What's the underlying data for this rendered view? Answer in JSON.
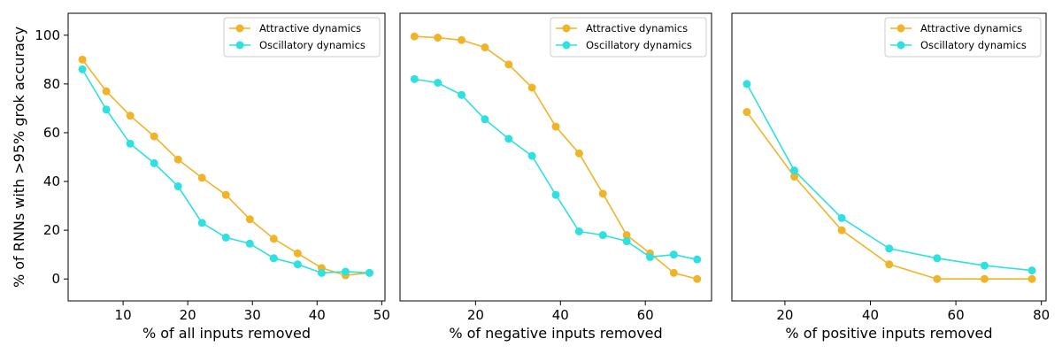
{
  "colors": {
    "attractive": "#f0b429",
    "oscillatory": "#2ee0e0"
  },
  "chart_data": [
    {
      "type": "line",
      "xlabel": "% of all inputs removed",
      "ylabel": "% of RNNs with >95% grok accuracy",
      "xlim": [
        1.5,
        50.5
      ],
      "ylim": [
        -9,
        109
      ],
      "xticks": [
        10,
        20,
        30,
        40,
        50
      ],
      "yticks": [
        0,
        20,
        40,
        60,
        80,
        100
      ],
      "legend": "top-right",
      "series": [
        {
          "name": "Attractive dynamics",
          "color": "#f0b429",
          "x": [
            3.7,
            7.4,
            11.1,
            14.8,
            18.5,
            22.2,
            25.9,
            29.6,
            33.3,
            37.0,
            40.7,
            44.4,
            48.1
          ],
          "y": [
            90,
            77,
            67,
            58.5,
            49,
            41.5,
            34.5,
            24.5,
            16.5,
            10.5,
            4.5,
            1.5,
            2.5
          ]
        },
        {
          "name": "Oscillatory dynamics",
          "color": "#2ee0e0",
          "x": [
            3.7,
            7.4,
            11.1,
            14.8,
            18.5,
            22.2,
            25.9,
            29.6,
            33.3,
            37.0,
            40.7,
            44.4,
            48.1
          ],
          "y": [
            86,
            69.5,
            55.5,
            47.5,
            38,
            23,
            17,
            14.5,
            8.5,
            6,
            2.5,
            3,
            2.5
          ]
        }
      ]
    },
    {
      "type": "line",
      "xlabel": "% of negative inputs removed",
      "ylabel": "",
      "xlim": [
        2.2,
        75.6
      ],
      "ylim": [
        -9,
        109
      ],
      "xticks": [
        20,
        40,
        60
      ],
      "yticks": [],
      "legend": "top-right",
      "series": [
        {
          "name": "Attractive dynamics",
          "color": "#f0b429",
          "x": [
            5.6,
            11.1,
            16.7,
            22.2,
            27.8,
            33.3,
            38.9,
            44.4,
            50.0,
            55.6,
            61.1,
            66.7,
            72.2
          ],
          "y": [
            99.5,
            99,
            98,
            95,
            88,
            78.5,
            62.5,
            51.5,
            35,
            18,
            10.5,
            2.5,
            0
          ]
        },
        {
          "name": "Oscillatory dynamics",
          "color": "#2ee0e0",
          "x": [
            5.6,
            11.1,
            16.7,
            22.2,
            27.8,
            33.3,
            38.9,
            44.4,
            50.0,
            55.6,
            61.1,
            66.7,
            72.2
          ],
          "y": [
            82,
            80.5,
            75.5,
            65.5,
            57.5,
            50.5,
            34.5,
            19.5,
            18,
            15.5,
            9,
            10,
            8
          ]
        }
      ]
    },
    {
      "type": "line",
      "xlabel": "% of positive inputs removed",
      "ylabel": "",
      "xlim": [
        7.6,
        81.1
      ],
      "ylim": [
        -9,
        109
      ],
      "xticks": [
        20,
        40,
        60,
        80
      ],
      "yticks": [],
      "legend": "top-right",
      "series": [
        {
          "name": "Attractive dynamics",
          "color": "#f0b429",
          "x": [
            11.1,
            22.2,
            33.3,
            44.4,
            55.6,
            66.7,
            77.8
          ],
          "y": [
            68.5,
            42,
            20,
            6,
            0,
            0,
            0
          ]
        },
        {
          "name": "Oscillatory dynamics",
          "color": "#2ee0e0",
          "x": [
            11.1,
            22.2,
            33.3,
            44.4,
            55.6,
            66.7,
            77.8
          ],
          "y": [
            80,
            44.5,
            25,
            12.5,
            8.5,
            5.5,
            3.5
          ]
        }
      ]
    }
  ]
}
